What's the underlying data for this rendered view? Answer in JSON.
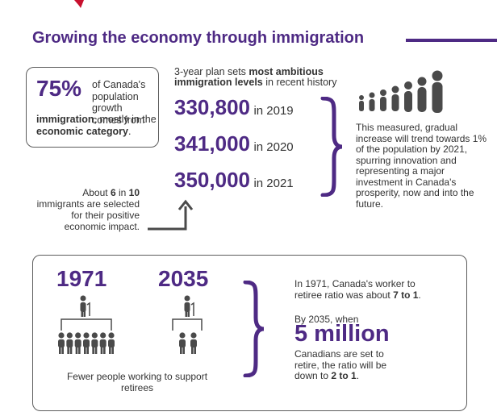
{
  "title": "Growing the economy through immigration",
  "stat_box": {
    "percent": "75%",
    "text_1": "of Canada's population growth comes from",
    "text_bold_1": "immigration",
    "text_2": ", mostly in the",
    "text_bold_2": "economic category",
    "text_3": "."
  },
  "plan": {
    "heading_1": "3-year plan sets ",
    "heading_bold": "most ambitious immigration levels",
    "heading_2": " in recent history",
    "levels": [
      {
        "value": "330,800",
        "year": "in 2019"
      },
      {
        "value": "341,000",
        "year": "in 2020"
      },
      {
        "value": "350,000",
        "year": "in 2021"
      }
    ]
  },
  "selected": {
    "text_1": "About ",
    "bold_1": "6",
    "text_2": " in ",
    "bold_2": "10",
    "text_3": " immigrants are selected for their positive economic impact."
  },
  "trend_text": "This measured, gradual increase will trend towards 1% of the population by 2021, spurring innovation and representing a major investment in Canada's prosperity, now and into the future.",
  "ratio": {
    "year_1": "1971",
    "year_2": "2035",
    "caption": "Fewer people working to support retirees",
    "p1_text": "In 1971, Canada's worker to retiree ratio was about ",
    "p1_bold": "7 to 1",
    "p1_end": ".",
    "p2_text": "By 2035, when",
    "five_million": "5 million",
    "p3_text": "Canadians are set to retire, the ratio will be down to ",
    "p3_bold": "2 to 1",
    "p3_end": ".",
    "workers_1971": 7,
    "workers_2035": 2
  },
  "colors": {
    "accent": "#4e2a84",
    "icon_gray": "#4a4a4a",
    "logo_red": "#c8102e"
  }
}
